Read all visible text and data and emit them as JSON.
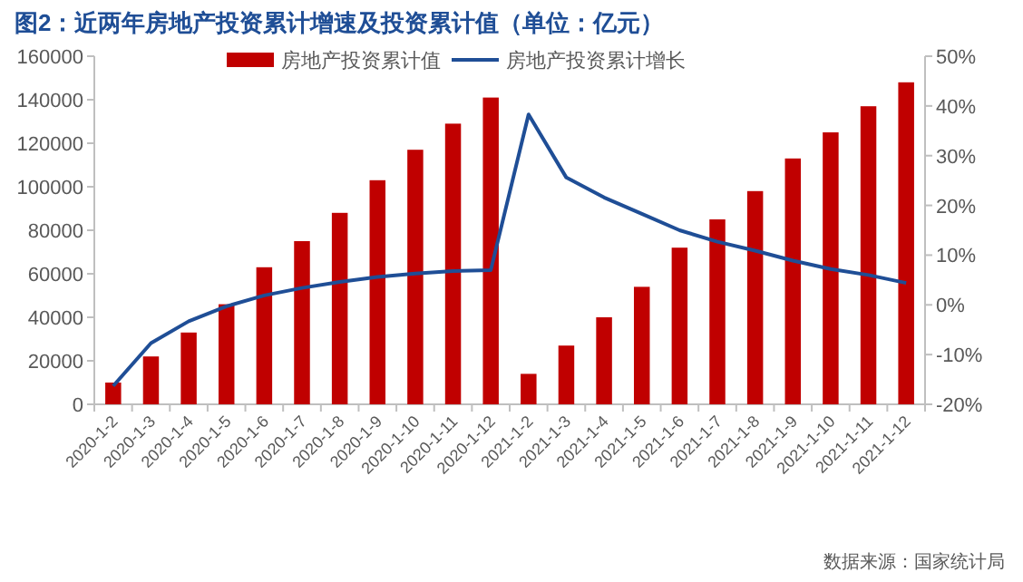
{
  "chart_data": {
    "type": "bar",
    "title": "图2：近两年房地产投资累计增速及投资累计值（单位：亿元）",
    "categories": [
      "2020-1-2",
      "2020-1-3",
      "2020-1-4",
      "2020-1-5",
      "2020-1-6",
      "2020-1-7",
      "2020-1-8",
      "2020-1-9",
      "2020-1-10",
      "2020-1-11",
      "2020-1-12",
      "2021-1-2",
      "2021-1-3",
      "2021-1-4",
      "2021-1-5",
      "2021-1-6",
      "2021-1-7",
      "2021-1-8",
      "2021-1-9",
      "2021-1-10",
      "2021-1-11",
      "2021-1-12"
    ],
    "series": [
      {
        "name": "房地产投资累计值",
        "color": "#c00000",
        "values": [
          10000,
          22000,
          33000,
          46000,
          63000,
          75000,
          88000,
          103000,
          117000,
          129000,
          141000,
          14000,
          27000,
          40000,
          54000,
          72000,
          85000,
          98000,
          113000,
          125000,
          137000,
          148000
        ]
      },
      {
        "name": "房地产投资累计增长",
        "type": "line",
        "axis": "y2",
        "color": "#1f4e96",
        "values": [
          -16.3,
          -7.7,
          -3.3,
          -0.3,
          1.9,
          3.4,
          4.6,
          5.6,
          6.3,
          6.8,
          7.0,
          38.3,
          25.6,
          21.6,
          18.3,
          15.0,
          12.7,
          10.9,
          8.9,
          7.2,
          6.0,
          4.4
        ]
      }
    ],
    "ylim": [
      0,
      160000
    ],
    "yticks": [
      0,
      20000,
      40000,
      60000,
      80000,
      100000,
      120000,
      140000,
      160000
    ],
    "y2lim": [
      -20,
      50
    ],
    "y2ticks": [
      {
        "value": -20,
        "label": "-20%"
      },
      {
        "value": -10,
        "label": "-10%"
      },
      {
        "value": 0,
        "label": "0%"
      },
      {
        "value": 10,
        "label": "10%"
      },
      {
        "value": 20,
        "label": "20%"
      },
      {
        "value": 30,
        "label": "30%"
      },
      {
        "value": 40,
        "label": "40%"
      },
      {
        "value": 50,
        "label": "50%"
      }
    ],
    "legend": "top",
    "grid": false,
    "marker": "none",
    "line_style": "solid",
    "annotations": [
      "数据来源：国家统计局"
    ]
  }
}
